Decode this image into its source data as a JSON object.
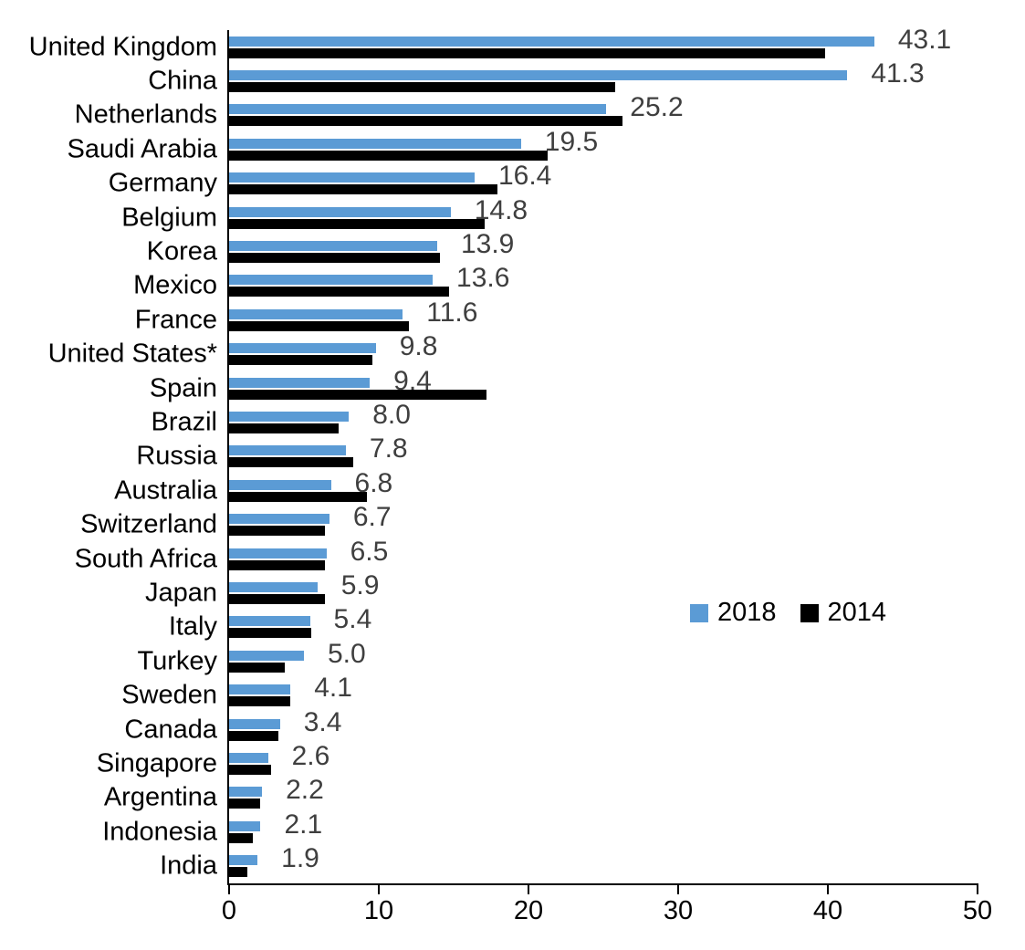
{
  "chart_data": {
    "type": "bar",
    "orientation": "horizontal",
    "title": "",
    "xlabel": "",
    "ylabel": "",
    "xlim": [
      0,
      50
    ],
    "x_ticks": [
      0,
      10,
      20,
      30,
      40,
      50
    ],
    "x_tick_labels": [
      "0",
      "10",
      "20",
      "30",
      "40",
      "50"
    ],
    "grid": false,
    "legend_position": "middle-right",
    "categories": [
      "United Kingdom",
      "China",
      "Netherlands",
      "Saudi Arabia",
      "Germany",
      "Belgium",
      "Korea",
      "Mexico",
      "France",
      "United States*",
      "Spain",
      "Brazil",
      "Russia",
      "Australia",
      "Switzerland",
      "South Africa",
      "Japan",
      "Italy",
      "Turkey",
      "Sweden",
      "Canada",
      "Singapore",
      "Argentina",
      "Indonesia",
      "India"
    ],
    "series": [
      {
        "name": "2018",
        "color": "#5B9BD5",
        "values": [
          43.1,
          41.3,
          25.2,
          19.5,
          16.4,
          14.8,
          13.9,
          13.6,
          11.6,
          9.8,
          9.4,
          8.0,
          7.8,
          6.8,
          6.7,
          6.5,
          5.9,
          5.4,
          5.0,
          4.1,
          3.4,
          2.6,
          2.2,
          2.1,
          1.9
        ]
      },
      {
        "name": "2014",
        "color": "#000000",
        "values": [
          39.8,
          25.8,
          26.3,
          21.3,
          17.9,
          17.1,
          14.1,
          14.7,
          12.0,
          9.6,
          17.2,
          7.3,
          8.3,
          9.2,
          6.4,
          6.4,
          6.4,
          5.5,
          3.7,
          4.1,
          3.3,
          2.8,
          2.1,
          1.6,
          1.2
        ]
      }
    ],
    "data_labels": {
      "series": "2018",
      "values": [
        "43.1",
        "41.3",
        "25.2",
        "19.5",
        "16.4",
        "14.8",
        "13.9",
        "13.6",
        "11.6",
        "9.8",
        "9.4",
        "8.0",
        "7.8",
        "6.8",
        "6.7",
        "6.5",
        "5.9",
        "5.4",
        "5.0",
        "4.1",
        "3.4",
        "2.6",
        "2.2",
        "2.1",
        "1.9"
      ],
      "color": "#3f3f3f"
    }
  },
  "colors": {
    "axis": "#000000",
    "background": "#ffffff",
    "category_label": "#000000",
    "value_label": "#3f3f3f",
    "series_2018": "#5B9BD5",
    "series_2014": "#000000"
  }
}
